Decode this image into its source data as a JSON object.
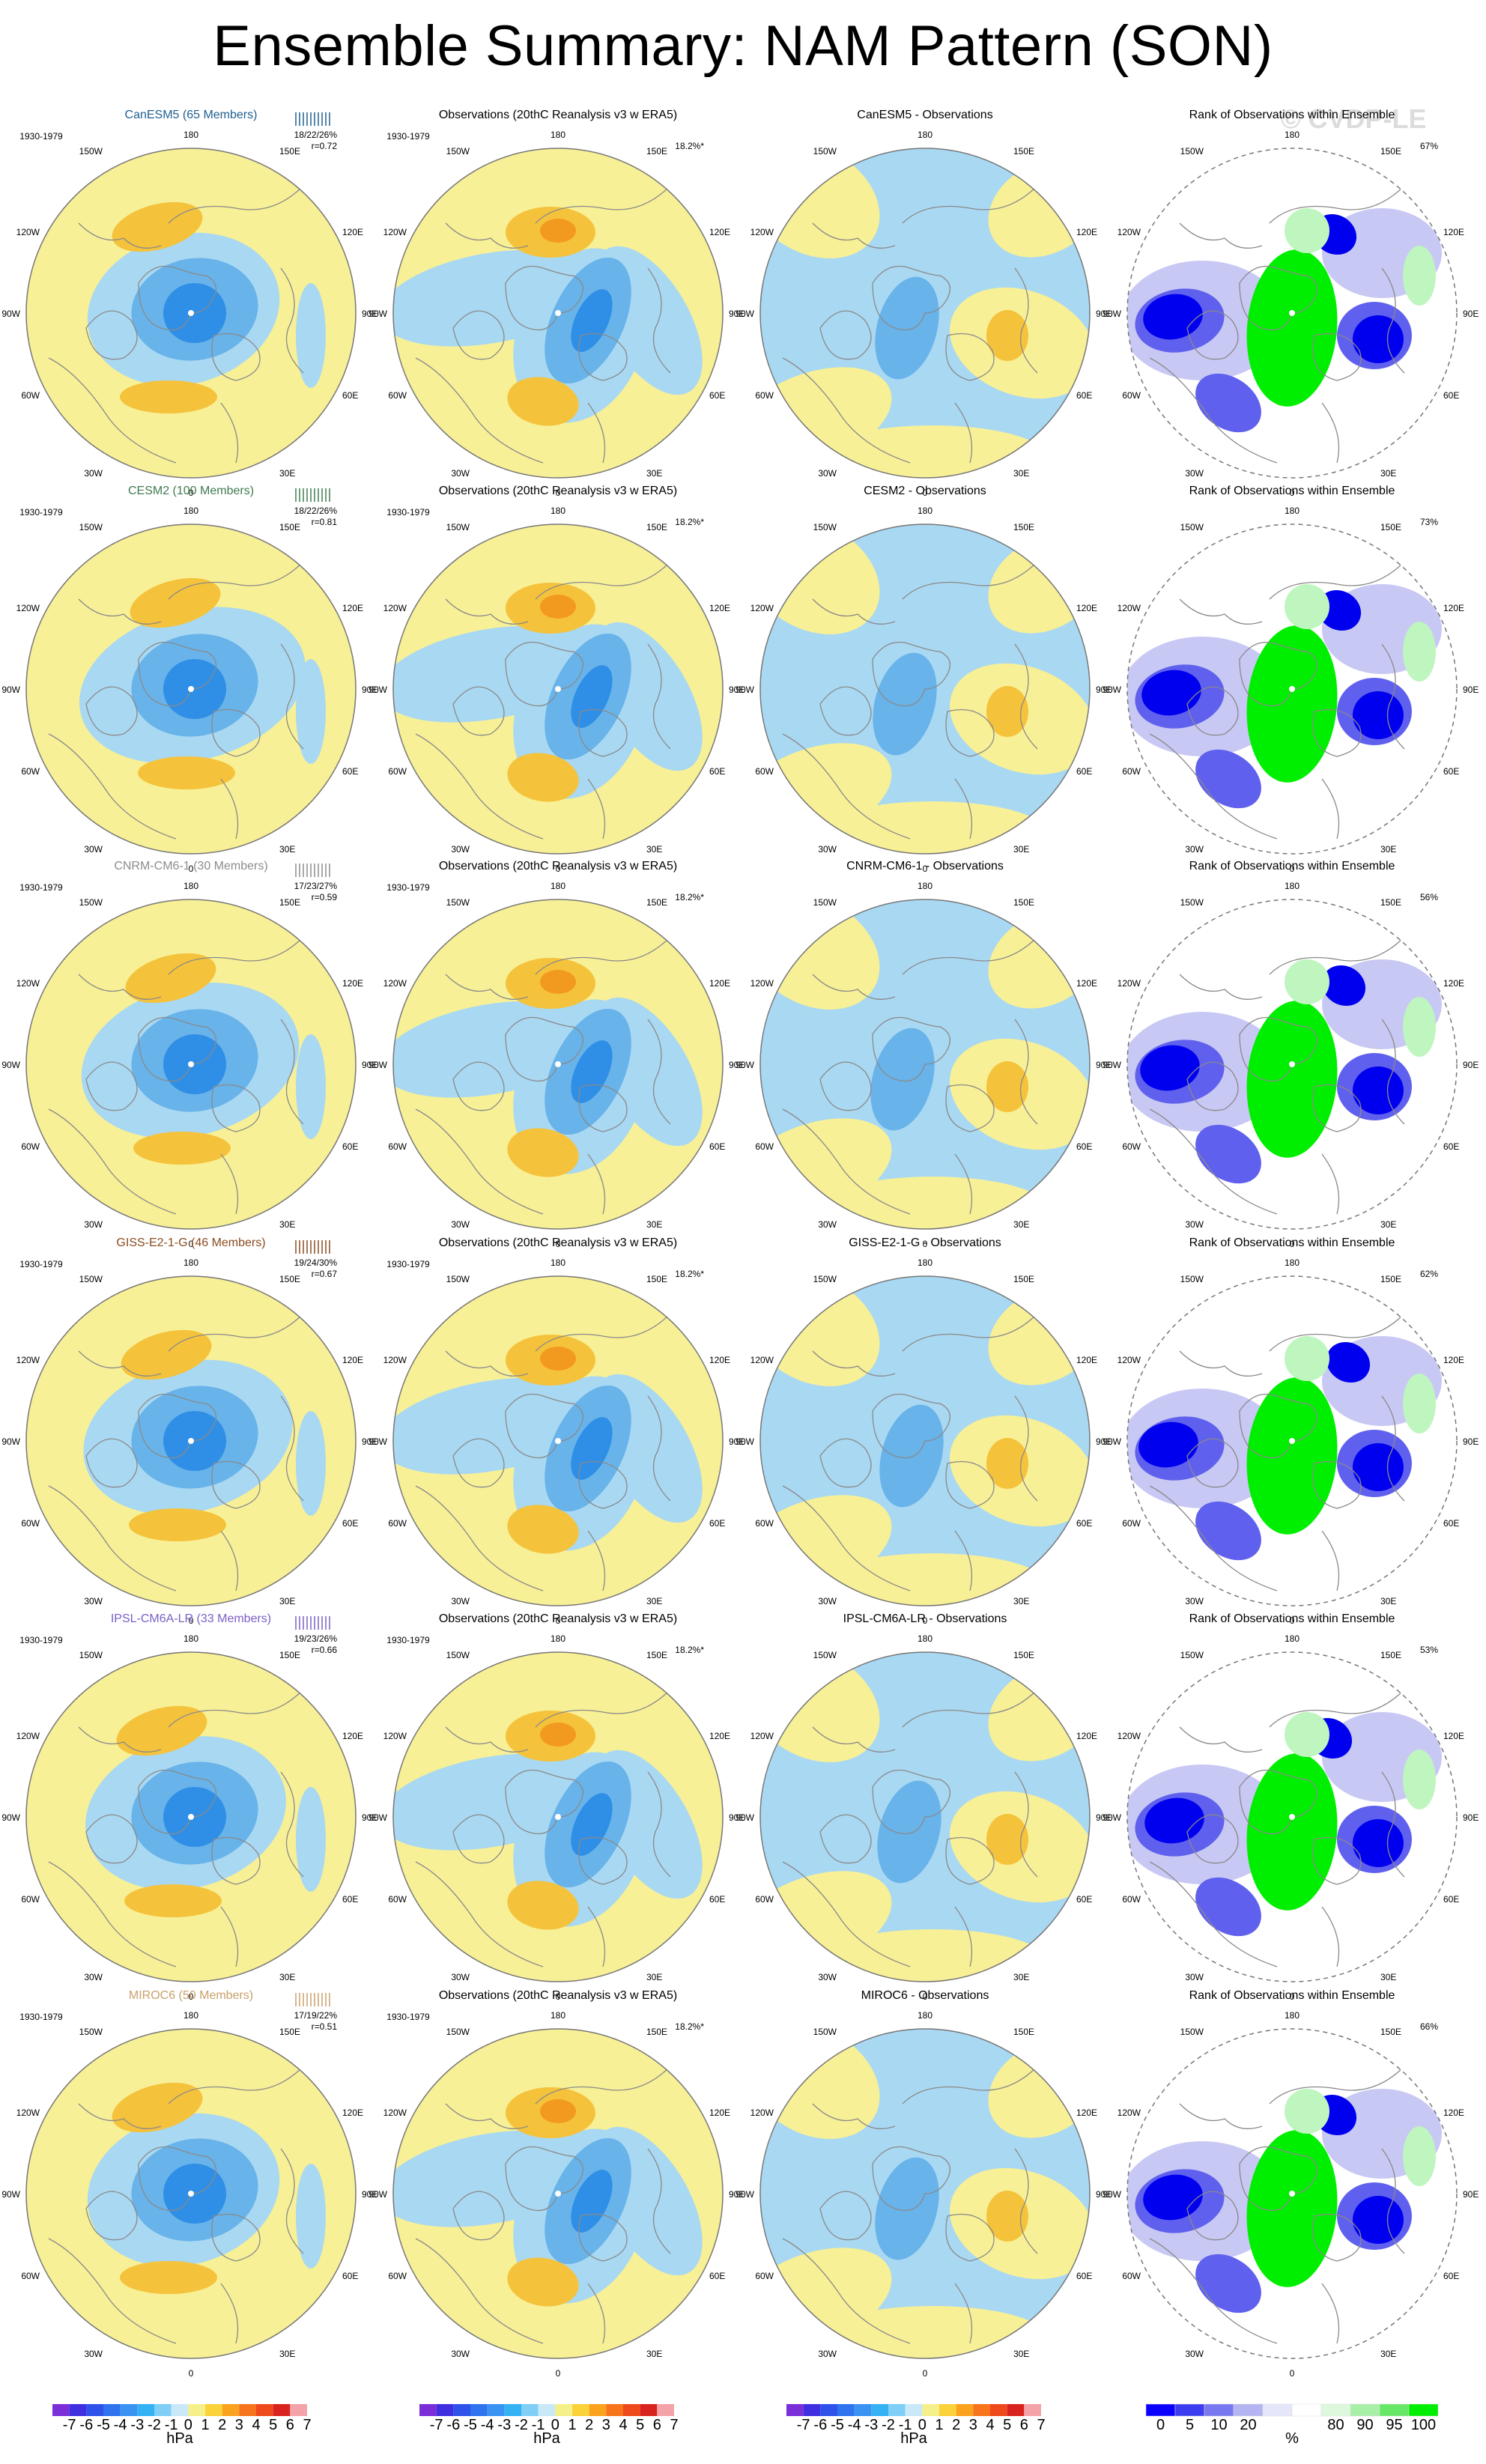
{
  "title": "Ensemble Summary: NAM Pattern (SON)",
  "watermark": "© CVDP-LE",
  "obs_title": "Observations (20thC Reanalysis v3 w ERA5)",
  "obs_pct": "18.2%*",
  "period": "1930-1979",
  "rank_title": "Rank of Observations within Ensemble",
  "lon_labels": {
    "top": "180",
    "upper_left": "150W",
    "upper_right": "150E",
    "mid_upper_left": "120W",
    "mid_upper_right": "120E",
    "left": "90W",
    "right": "90E",
    "mid_lower_left": "60W",
    "mid_lower_right": "60E",
    "lower_left": "30W",
    "lower_right": "30E",
    "bottom": "0"
  },
  "rows": [
    {
      "model": "CanESM5",
      "label": "CanESM5 (65 Members)",
      "color": "#1f5f8f",
      "stats": "18/22/26%",
      "r": "r=0.72",
      "diff_title": "CanESM5 - Observations",
      "rank_pct": "67%"
    },
    {
      "model": "CESM2",
      "label": "CESM2 (100 Members)",
      "color": "#3f7a4f",
      "stats": "18/22/26%",
      "r": "r=0.81",
      "diff_title": "CESM2 - Observations",
      "rank_pct": "73%"
    },
    {
      "model": "CNRM-CM6-1",
      "label": "CNRM-CM6-1 (30 Members)",
      "color": "#8c8c8c",
      "stats": "17/23/27%",
      "r": "r=0.59",
      "diff_title": "CNRM-CM6-1 - Observations",
      "rank_pct": "56%"
    },
    {
      "model": "GISS-E2-1-G",
      "label": "GISS-E2-1-G (46 Members)",
      "color": "#8a4b1f",
      "stats": "19/24/30%",
      "r": "r=0.67",
      "diff_title": "GISS-E2-1-G - Observations",
      "rank_pct": "62%"
    },
    {
      "model": "IPSL-CM6A-LR",
      "label": "IPSL-CM6A-LR (33 Members)",
      "color": "#7b5fc7",
      "stats": "19/23/26%",
      "r": "r=0.66",
      "diff_title": "IPSL-CM6A-LR - Observations",
      "rank_pct": "53%"
    },
    {
      "model": "MIROC6",
      "label": "MIROC6 (50 Members)",
      "color": "#c9a06a",
      "stats": "17/19/22%",
      "r": "r=0.51",
      "diff_title": "MIROC6 - Observations",
      "rank_pct": "66%"
    }
  ],
  "hpa_bar": {
    "ticks": [
      "-7",
      "-6",
      "-5",
      "-4",
      "-3",
      "-2",
      "-1",
      "0",
      "1",
      "2",
      "3",
      "4",
      "5",
      "6",
      "7"
    ],
    "unit": "hPa",
    "colors": [
      "#7b2fd8",
      "#3f2fe0",
      "#2f52ea",
      "#2f73ee",
      "#3a93f2",
      "#35b2f4",
      "#7fcff7",
      "#c9e8f8",
      "#f6f08a",
      "#fbd23a",
      "#fba21f",
      "#f7741c",
      "#ee4a1c",
      "#d9231f",
      "#f4a3a8"
    ]
  },
  "rank_bar": {
    "ticks": [
      "0",
      "5",
      "10",
      "20",
      "80",
      "90",
      "95",
      "100"
    ],
    "unit": "%",
    "colors": [
      "#0a00ff",
      "#3c3cf0",
      "#7878f0",
      "#b4b4f3",
      "#e6e6fa",
      "#ffffff",
      "#ddf8dd",
      "#a8f0a8",
      "#66e866",
      "#00ee00"
    ]
  },
  "map_colors": {
    "pos1": "#f7f096",
    "neg1": "#a9d8f2",
    "neg2": "#68b3ea",
    "neg3": "#2f8ee5",
    "pos2": "#f5c23b",
    "pos3": "#f29a1f",
    "rank_blue": "#0000ee",
    "rank_blue2": "#6060ee",
    "rank_blue3": "#c8c8f4",
    "rank_green": "#00ee00",
    "rank_green2": "#bff5bf",
    "outline": "#777777",
    "coast": "#8a8a8a"
  }
}
